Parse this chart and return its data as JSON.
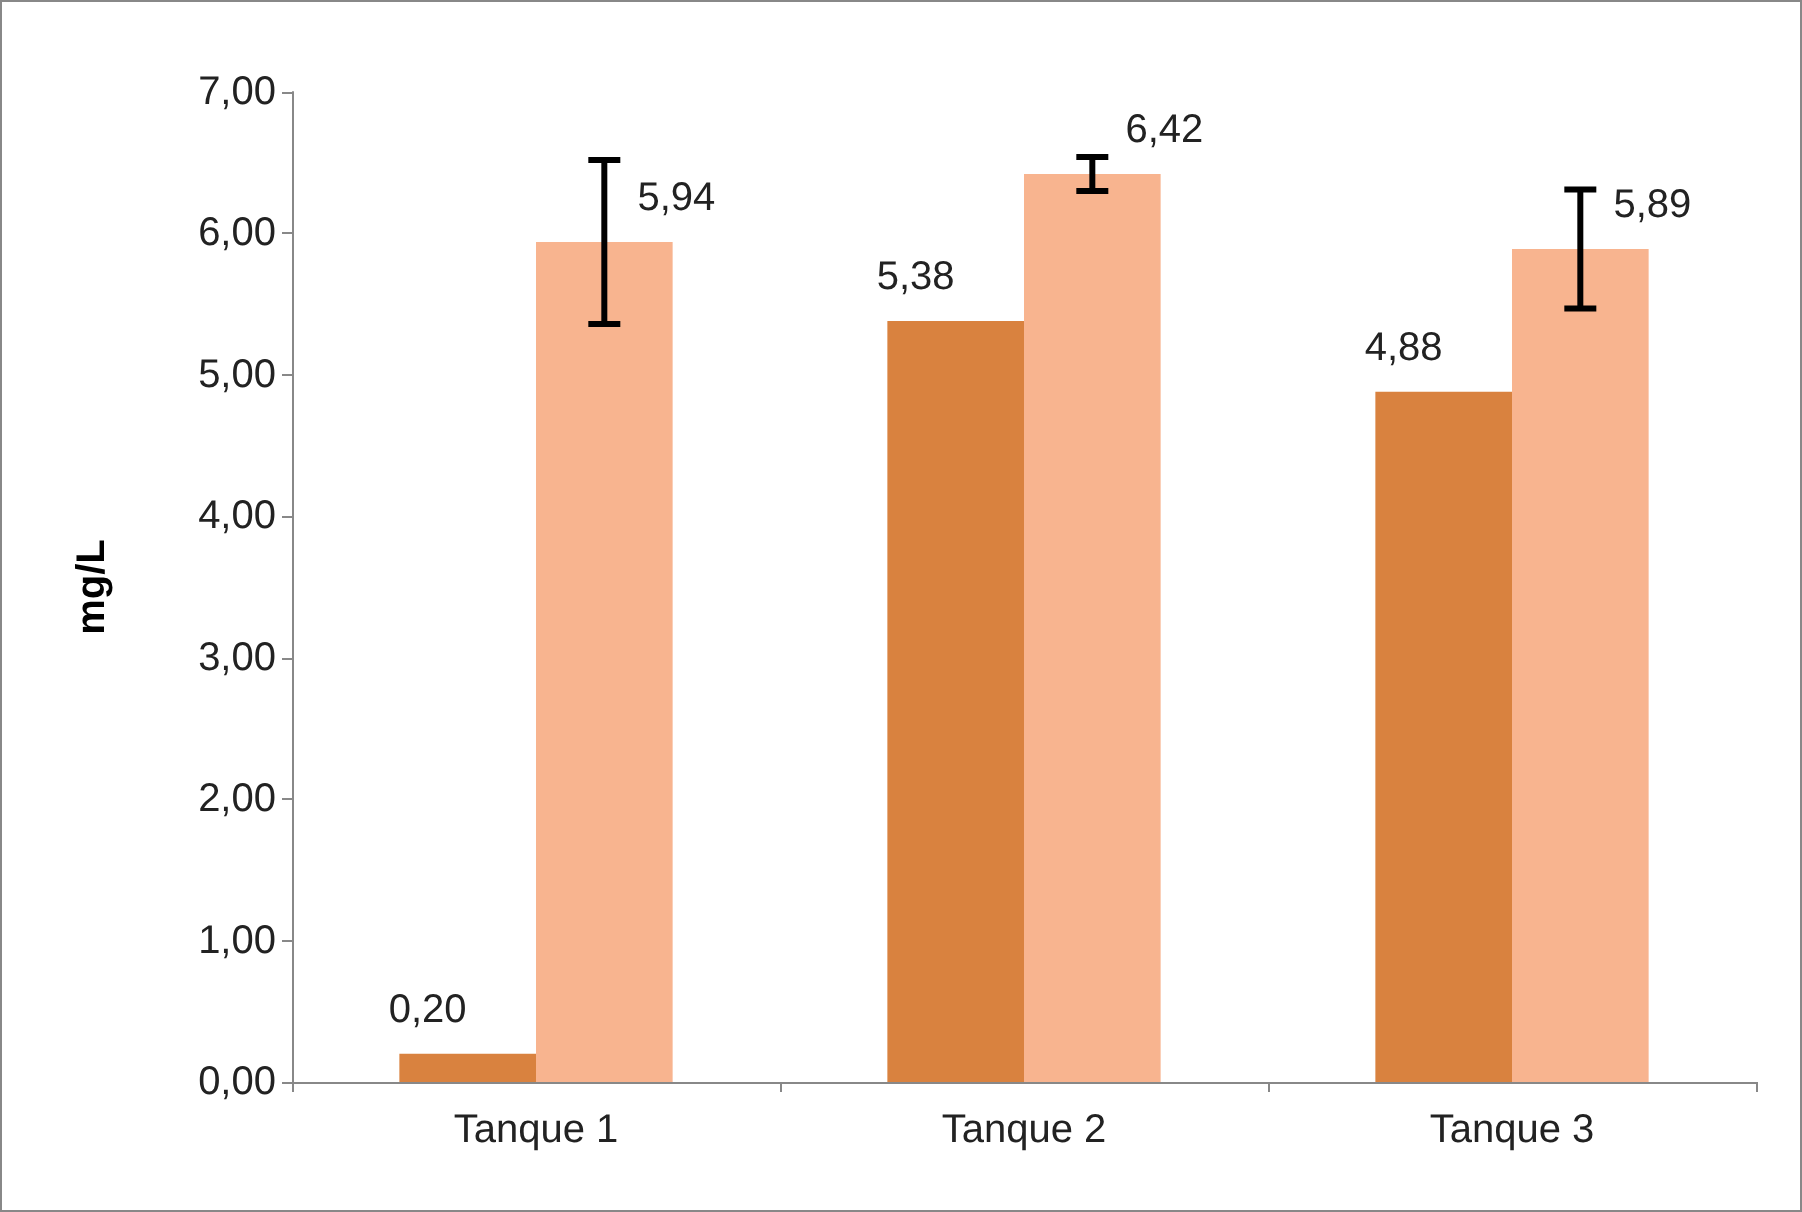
{
  "chart_data": {
    "type": "bar",
    "ylabel": "mg/L",
    "categories": [
      "Tanque 1",
      "Tanque 2",
      "Tanque 3"
    ],
    "series": [
      {
        "color": "#d9823f",
        "values": [
          0.2,
          5.38,
          4.88
        ],
        "value_labels": [
          "0,20",
          "5,38",
          "4,88"
        ]
      },
      {
        "color": "#f8b48f",
        "values": [
          5.94,
          6.42,
          5.89
        ],
        "value_labels": [
          "5,94",
          "6,42",
          "5,89"
        ],
        "errors": [
          0.58,
          0.12,
          0.42
        ]
      }
    ],
    "ylim": [
      0,
      7
    ],
    "yticks": [
      {
        "value": 0,
        "label": "0,00"
      },
      {
        "value": 1,
        "label": "1,00"
      },
      {
        "value": 2,
        "label": "2,00"
      },
      {
        "value": 3,
        "label": "3,00"
      },
      {
        "value": 4,
        "label": "4,00"
      },
      {
        "value": 5,
        "label": "5,00"
      },
      {
        "value": 6,
        "label": "6,00"
      },
      {
        "value": 7,
        "label": "7,00"
      }
    ],
    "grid": false
  }
}
